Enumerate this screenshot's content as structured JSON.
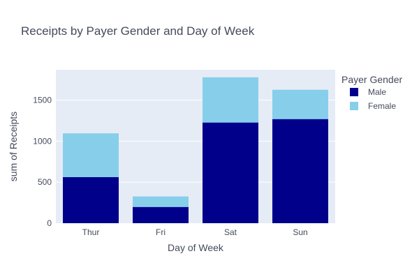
{
  "chart_data": {
    "type": "bar",
    "barmode": "stack",
    "title": "Receipts by Payer Gender and Day of Week",
    "xlabel": "Day of Week",
    "ylabel": "sum of Receipts",
    "categories": [
      "Thur",
      "Fri",
      "Sat",
      "Sun"
    ],
    "series": [
      {
        "name": "Male",
        "color": "#00008b",
        "values": [
          561,
          198,
          1227,
          1269
        ]
      },
      {
        "name": "Female",
        "color": "#87ceeb",
        "values": [
          534,
          128,
          551,
          357
        ]
      }
    ],
    "ylim": [
      0,
      1870
    ],
    "yticks": [
      0,
      500,
      1000,
      1500
    ],
    "grid": true,
    "legend": {
      "title": "Payer Gender",
      "placement": "right"
    },
    "plot_bgcolor": "#e5ecf6"
  }
}
